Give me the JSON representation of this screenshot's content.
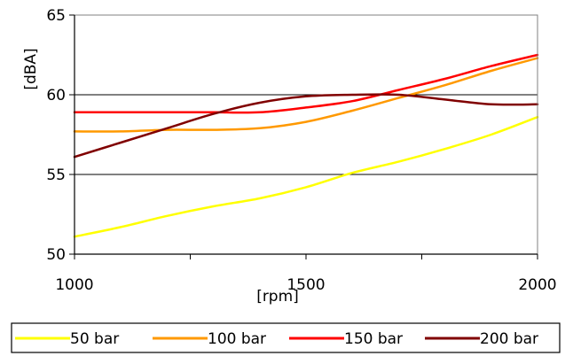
{
  "chart_data": {
    "type": "line",
    "xlabel": "[rpm]",
    "ylabel": "[dBA]",
    "xlim": [
      1000,
      2000
    ],
    "ylim": [
      50,
      65
    ],
    "x_ticks": [
      1000,
      1500,
      2000
    ],
    "x_minor_ticks": [
      1000,
      1250,
      1500,
      1750,
      2000
    ],
    "y_ticks": [
      50,
      55,
      60,
      65
    ],
    "gridlines": "horizontal",
    "legend_position": "bottom",
    "series": [
      {
        "name": "50 bar",
        "color": "#ffff00",
        "x": [
          1000,
          1100,
          1200,
          1300,
          1400,
          1500,
          1600,
          1700,
          1800,
          1900,
          2000
        ],
        "y": [
          51.1,
          51.7,
          52.4,
          53.0,
          53.5,
          54.2,
          55.1,
          55.8,
          56.6,
          57.5,
          58.6
        ]
      },
      {
        "name": "100 bar",
        "color": "#ff9900",
        "x": [
          1000,
          1100,
          1200,
          1300,
          1400,
          1500,
          1600,
          1700,
          1800,
          1900,
          2000
        ],
        "y": [
          57.7,
          57.7,
          57.8,
          57.8,
          57.9,
          58.3,
          59.0,
          59.8,
          60.6,
          61.5,
          62.3
        ]
      },
      {
        "name": "150 bar",
        "color": "#ff0000",
        "x": [
          1000,
          1100,
          1200,
          1300,
          1400,
          1500,
          1600,
          1700,
          1800,
          1900,
          2000
        ],
        "y": [
          58.9,
          58.9,
          58.9,
          58.9,
          58.9,
          59.2,
          59.6,
          60.3,
          61.0,
          61.8,
          62.5
        ]
      },
      {
        "name": "200 bar",
        "color": "#800000",
        "x": [
          1000,
          1100,
          1200,
          1300,
          1400,
          1500,
          1600,
          1700,
          1800,
          1900,
          2000
        ],
        "y": [
          56.1,
          57.0,
          57.9,
          58.8,
          59.5,
          59.9,
          60.0,
          60.0,
          59.7,
          59.4,
          59.4
        ]
      }
    ]
  }
}
